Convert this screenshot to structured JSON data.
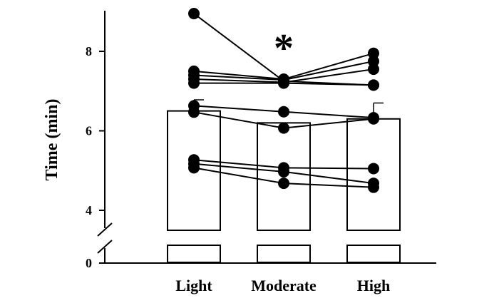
{
  "chart_data": {
    "type": "bar",
    "ylabel": "Time (min)",
    "categories": [
      "Light",
      "Moderate",
      "High"
    ],
    "bar_means": [
      6.5,
      6.2,
      6.3
    ],
    "error_upper": [
      6.78,
      null,
      6.7
    ],
    "y_ticks": [
      0,
      4,
      6,
      8
    ],
    "y_axis_break": [
      0,
      3.5
    ],
    "ylim": [
      3.5,
      9.0
    ],
    "annotation": {
      "text": "*",
      "category": "Moderate"
    },
    "subjects": [
      {
        "values": [
          8.95,
          7.25,
          7.15
        ]
      },
      {
        "values": [
          7.5,
          7.3,
          7.95
        ]
      },
      {
        "values": [
          7.4,
          7.28,
          7.75
        ]
      },
      {
        "values": [
          7.3,
          7.22,
          7.55
        ]
      },
      {
        "values": [
          7.2,
          7.2,
          7.15
        ]
      },
      {
        "values": [
          6.63,
          6.48,
          6.33
        ]
      },
      {
        "values": [
          6.47,
          6.07,
          6.3
        ]
      },
      {
        "values": [
          5.27,
          5.07,
          5.05
        ]
      },
      {
        "values": [
          5.17,
          4.97,
          4.68
        ]
      },
      {
        "values": [
          5.07,
          4.68,
          4.58
        ]
      }
    ],
    "grid": false,
    "legend": "none"
  }
}
